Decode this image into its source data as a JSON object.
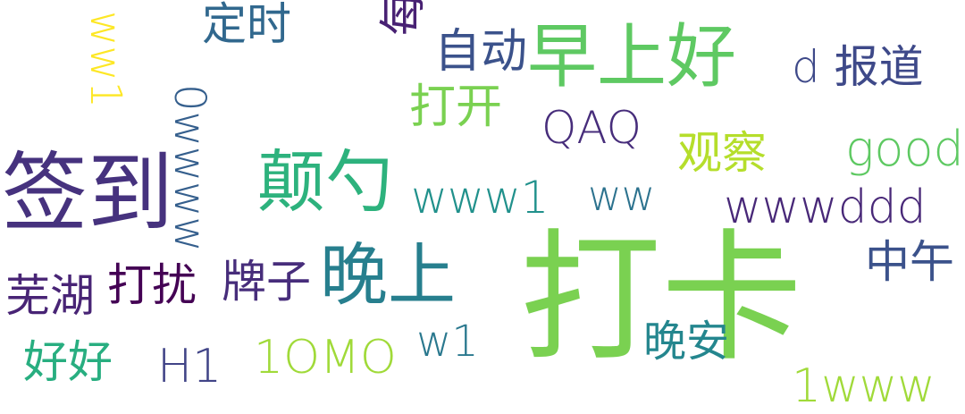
{
  "title": "word cloud",
  "words": [
    {
      "text": "打卡",
      "color": "#7ad151"
    },
    {
      "text": "早上好",
      "color": "#5ec962"
    },
    {
      "text": "签到",
      "color": "#46327e"
    },
    {
      "text": "颠勺",
      "color": "#2db27d"
    },
    {
      "text": "晚上",
      "color": "#277f8e"
    },
    {
      "text": "定时",
      "color": "#31688e"
    },
    {
      "text": "自动",
      "color": "#3b528b"
    },
    {
      "text": "d 报道",
      "color": "#3e4989"
    },
    {
      "text": "打开",
      "color": "#7ad151"
    },
    {
      "text": "QAQ",
      "color": "#472d7b"
    },
    {
      "text": "观察",
      "color": "#b5de2b"
    },
    {
      "text": "good",
      "color": "#5ec962"
    },
    {
      "text": "www1",
      "color": "#21918c"
    },
    {
      "text": "ww",
      "color": "#2c728e"
    },
    {
      "text": "wwwddd",
      "color": "#482878"
    },
    {
      "text": "中午",
      "color": "#3b528b"
    },
    {
      "text": "芜湖",
      "color": "#482475"
    },
    {
      "text": "打扰",
      "color": "#440154"
    },
    {
      "text": "牌子",
      "color": "#472d7b"
    },
    {
      "text": "好好",
      "color": "#28ae80"
    },
    {
      "text": "H1",
      "color": "#414487"
    },
    {
      "text": "1OMO",
      "color": "#a0da39"
    },
    {
      "text": "w1",
      "color": "#2a788e"
    },
    {
      "text": "晚安",
      "color": "#24868e"
    },
    {
      "text": "1www",
      "color": "#a0da39"
    },
    {
      "text": "ww1",
      "color": "#fde725"
    },
    {
      "text": "0wwww",
      "color": "#355f8d"
    },
    {
      "text": "每日",
      "color": "#482173"
    }
  ]
}
